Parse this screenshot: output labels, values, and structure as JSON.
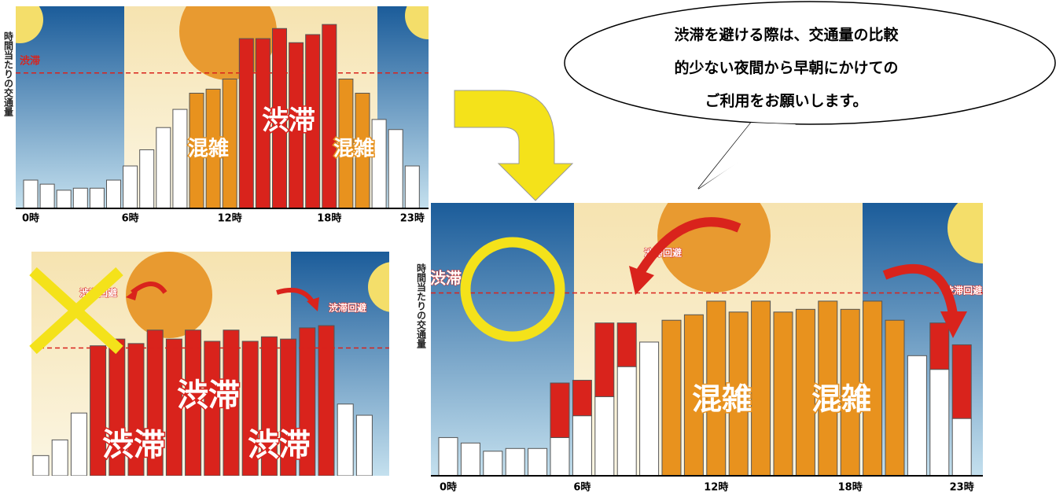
{
  "chart_data": [
    {
      "type": "bar",
      "y_label": "時間当たりの交通量",
      "categories": [
        "0時",
        null,
        null,
        null,
        null,
        null,
        "6時",
        null,
        null,
        null,
        null,
        null,
        "12時",
        null,
        null,
        null,
        null,
        null,
        "18時",
        null,
        null,
        null,
        null,
        "23時"
      ],
      "values": [
        14,
        12,
        9,
        10,
        10,
        14,
        21,
        29,
        40,
        49,
        57,
        59,
        64,
        84,
        84,
        89,
        82,
        86,
        91,
        64,
        57,
        44,
        39,
        21
      ],
      "bar_colors": [
        "#ffffff",
        "#ffffff",
        "#ffffff",
        "#ffffff",
        "#ffffff",
        "#ffffff",
        "#ffffff",
        "#ffffff",
        "#ffffff",
        "#ffffff",
        "#e8921e",
        "#e8921e",
        "#e8921e",
        "#d9231c",
        "#d9231c",
        "#d9231c",
        "#d9231c",
        "#d9231c",
        "#d9231c",
        "#e8921e",
        "#e8921e",
        "#ffffff",
        "#ffffff",
        "#ffffff"
      ],
      "threshold": 67,
      "annotations": [
        "渋滞",
        "混雑",
        "渋滞",
        "混雑"
      ]
    },
    {
      "type": "bar",
      "values": [
        9,
        16,
        28,
        58,
        61,
        59,
        65,
        61,
        65,
        60,
        65,
        60,
        62,
        61,
        66,
        67,
        32,
        27
      ],
      "bar_colors": [
        "#ffffff",
        "#ffffff",
        "#ffffff",
        "#d9231c",
        "#d9231c",
        "#d9231c",
        "#d9231c",
        "#d9231c",
        "#d9231c",
        "#d9231c",
        "#d9231c",
        "#d9231c",
        "#d9231c",
        "#d9231c",
        "#d9231c",
        "#d9231c",
        "#ffffff",
        "#ffffff"
      ],
      "threshold": 57,
      "annotations": [
        "渋滞回避",
        "渋滞回避",
        "渋滞",
        "渋滞",
        "渋滞"
      ]
    },
    {
      "type": "bar",
      "y_label": "時間当たりの交通量",
      "categories": [
        "0時",
        null,
        null,
        null,
        null,
        null,
        "6時",
        null,
        null,
        null,
        null,
        null,
        "12時",
        null,
        null,
        null,
        null,
        null,
        "18時",
        null,
        null,
        null,
        null,
        "23時"
      ],
      "values": [
        14,
        12,
        9,
        10,
        10,
        14,
        22,
        29,
        40,
        49,
        57,
        59,
        64,
        60,
        64,
        60,
        61,
        64,
        61,
        64,
        57,
        44,
        39,
        21
      ],
      "shifted_values": [
        null,
        null,
        null,
        null,
        null,
        20,
        13,
        27,
        16,
        null,
        null,
        null,
        null,
        null,
        null,
        null,
        null,
        null,
        null,
        null,
        null,
        null,
        17,
        27
      ],
      "bar_colors": [
        "#ffffff",
        "#ffffff",
        "#ffffff",
        "#ffffff",
        "#ffffff",
        "#ffffff",
        "#ffffff",
        "#ffffff",
        "#ffffff",
        "#ffffff",
        "#e8921e",
        "#e8921e",
        "#e8921e",
        "#e8921e",
        "#e8921e",
        "#e8921e",
        "#e8921e",
        "#e8921e",
        "#e8921e",
        "#e8921e",
        "#e8921e",
        "#ffffff",
        "#ffffff",
        "#ffffff"
      ],
      "shift_color": "#d9231c",
      "threshold": 67,
      "annotations": [
        "渋滞",
        "渋滞回避",
        "渋滞回避",
        "混雑",
        "混雑"
      ]
    }
  ],
  "callout": [
    "渋滞を避ける際は、交通量の比較",
    "的少ない夜間から早朝にかけての",
    "ご利用をお願いします。"
  ]
}
